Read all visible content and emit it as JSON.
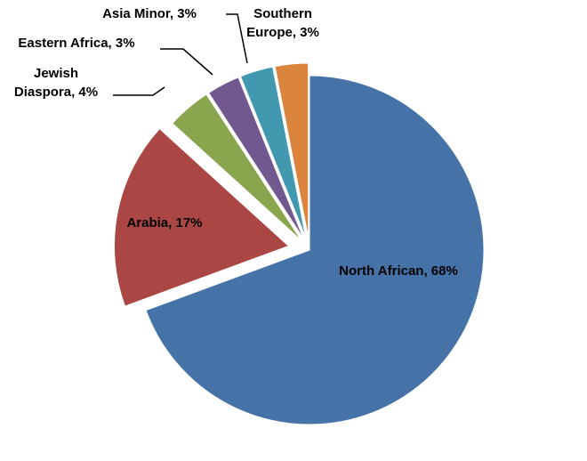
{
  "chart_data": {
    "type": "pie",
    "title": "",
    "slices": [
      {
        "label": "North African",
        "value": 68,
        "display": "North African, 68%",
        "color": "#4572A7"
      },
      {
        "label": "Arabia",
        "value": 17,
        "display": "Arabia, 17%",
        "color": "#AA4643"
      },
      {
        "label": "Jewish Diaspora",
        "value": 4,
        "display": "Jewish Diaspora, 4%",
        "display_lines": [
          "Jewish",
          "Diaspora, 4%"
        ],
        "color": "#89A54E"
      },
      {
        "label": "Eastern Africa",
        "value": 3,
        "display": "Eastern Africa, 3%",
        "color": "#71588F"
      },
      {
        "label": "Asia Minor",
        "value": 3,
        "display": "Asia Minor, 3%",
        "color": "#4198AF"
      },
      {
        "label": "Southern Europe",
        "value": 3,
        "display": "Southern Europe, 3%",
        "display_lines": [
          "Southern",
          "Europe, 3%"
        ],
        "color": "#DB843D"
      }
    ],
    "exploded": true,
    "legend": "none",
    "data_labels": "outside with leader lines"
  }
}
